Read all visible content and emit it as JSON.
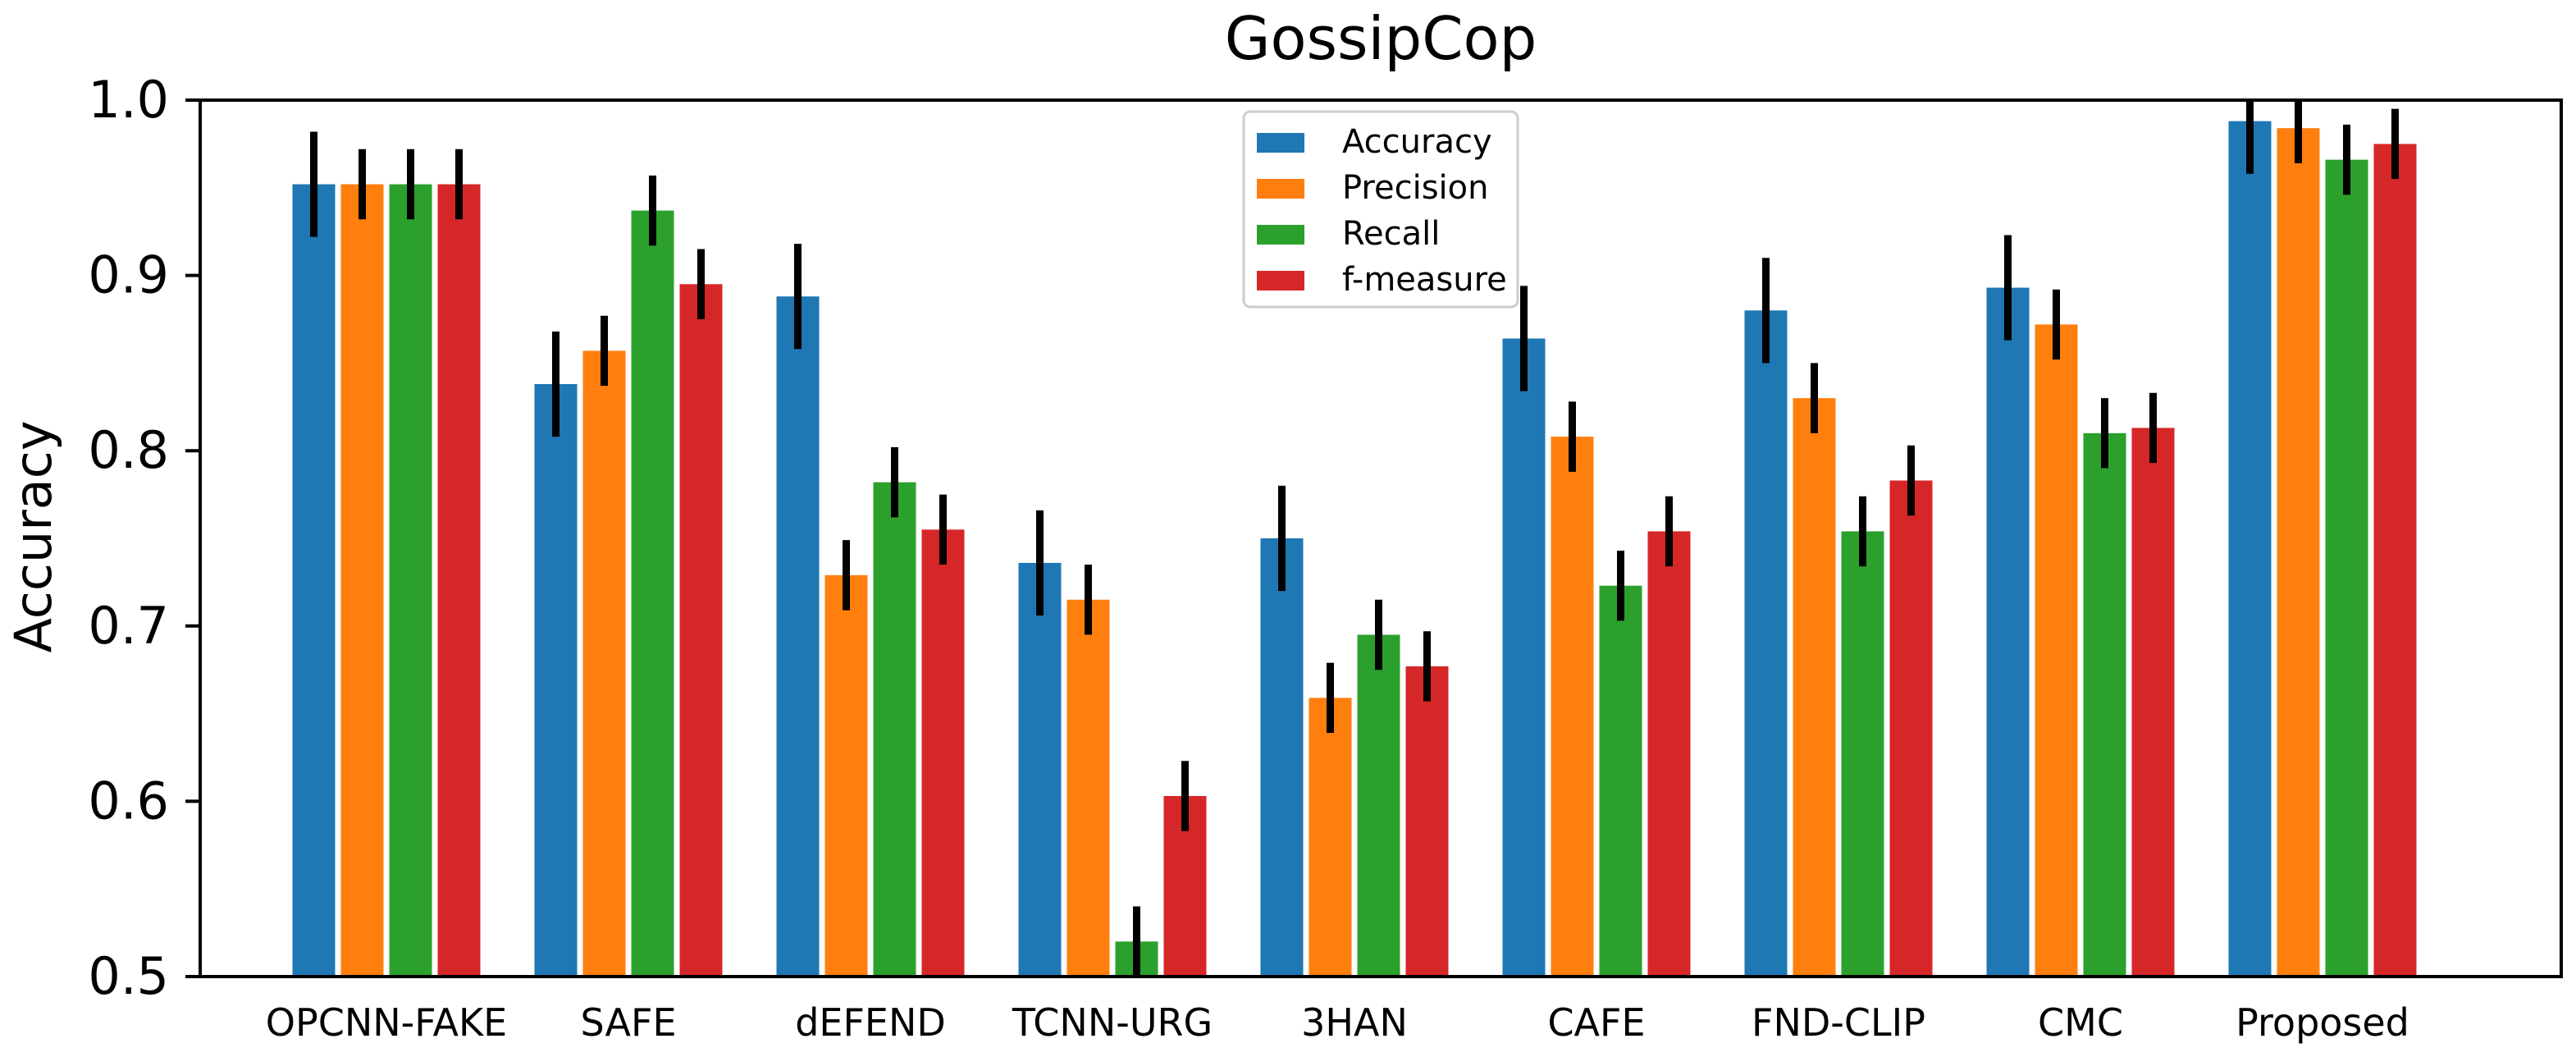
{
  "chart_data": {
    "type": "bar",
    "title": "GossipCop",
    "xlabel": "",
    "ylabel": "Accuracy",
    "ylim": [
      0.5,
      1.0
    ],
    "yticks": [
      "0.5",
      "0.6",
      "0.7",
      "0.8",
      "0.9",
      "1.0"
    ],
    "categories": [
      "OPCNN-FAKE",
      "SAFE",
      "dEFEND",
      "TCNN-URG",
      "3HAN",
      "CAFE",
      "FND-CLIP",
      "CMC",
      "Proposed"
    ],
    "series": [
      {
        "name": "Accuracy",
        "color": "#1f77b4",
        "values": [
          0.952,
          0.838,
          0.888,
          0.736,
          0.75,
          0.864,
          0.88,
          0.893,
          0.988
        ],
        "errors": [
          0.03,
          0.03,
          0.03,
          0.03,
          0.03,
          0.03,
          0.03,
          0.03,
          0.03
        ]
      },
      {
        "name": "Precision",
        "color": "#ff7f0e",
        "values": [
          0.952,
          0.857,
          0.729,
          0.715,
          0.659,
          0.808,
          0.83,
          0.872,
          0.984
        ],
        "errors": [
          0.02,
          0.02,
          0.02,
          0.02,
          0.02,
          0.02,
          0.02,
          0.02,
          0.02
        ]
      },
      {
        "name": "Recall",
        "color": "#2ca02c",
        "values": [
          0.952,
          0.937,
          0.782,
          0.52,
          0.695,
          0.723,
          0.754,
          0.81,
          0.966
        ],
        "errors": [
          0.02,
          0.02,
          0.02,
          0.02,
          0.02,
          0.02,
          0.02,
          0.02,
          0.02
        ]
      },
      {
        "name": "f-measure",
        "color": "#d62728",
        "values": [
          0.952,
          0.895,
          0.755,
          0.603,
          0.677,
          0.754,
          0.783,
          0.813,
          0.975
        ],
        "errors": [
          0.02,
          0.02,
          0.02,
          0.02,
          0.02,
          0.02,
          0.02,
          0.02,
          0.02
        ]
      }
    ],
    "legend_position": "top-center",
    "grid": false
  }
}
